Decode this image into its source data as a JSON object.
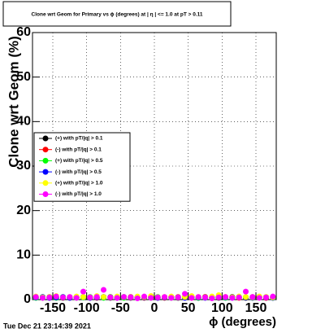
{
  "chart_data": {
    "type": "scatter",
    "title": "Clone wrt Geom for Primary vs ϕ (degrees) at | η | <= 1.0 at pT > 0.11",
    "x_label": "ϕ (degrees)",
    "y_label": "Clone wrt Geom (%)",
    "timestamp": "Tue Dec 21 23:14:39 2021",
    "xlim": [
      -180,
      180
    ],
    "ylim": [
      0,
      60
    ],
    "xticks": [
      -150,
      -100,
      -50,
      0,
      50,
      100,
      150
    ],
    "yticks": [
      0,
      10,
      20,
      30,
      40,
      50,
      60
    ],
    "grid": true,
    "legend": "left",
    "x": [
      -175,
      -165,
      -155,
      -145,
      -135,
      -125,
      -115,
      -105,
      -95,
      -85,
      -75,
      -65,
      -55,
      -45,
      -35,
      -25,
      -15,
      -5,
      5,
      15,
      25,
      35,
      45,
      55,
      65,
      75,
      85,
      95,
      105,
      115,
      125,
      135,
      145,
      155,
      165,
      175
    ],
    "series": [
      {
        "name": "(+) with pT/|q| > 0.1",
        "color": "#000000",
        "values": [
          0.5,
          0.4,
          0.6,
          0.5,
          0.4,
          0.5,
          0.6,
          0.5,
          0.4,
          0.5,
          0.6,
          0.4,
          0.5,
          0.6,
          0.4,
          0.5,
          0.6,
          0.5,
          0.4,
          0.5,
          0.6,
          0.4,
          0.5,
          0.5,
          0.4,
          0.6,
          0.5,
          0.4,
          0.5,
          0.6,
          0.5,
          0.4,
          0.5,
          0.6,
          0.4,
          0.5
        ]
      },
      {
        "name": "(-) with pT/|q| > 0.1",
        "color": "#ff0000",
        "values": [
          0.6,
          0.5,
          0.4,
          0.6,
          0.5,
          0.4,
          0.5,
          0.6,
          0.5,
          0.4,
          0.5,
          0.6,
          0.4,
          0.5,
          0.6,
          0.5,
          0.4,
          0.6,
          0.5,
          0.4,
          0.5,
          0.6,
          0.5,
          0.4,
          0.5,
          0.6,
          0.4,
          0.5,
          0.6,
          0.5,
          0.4,
          0.5,
          0.6,
          0.5,
          0.4,
          0.6
        ]
      },
      {
        "name": "(+) with pT/|q| > 0.5",
        "color": "#00ff00",
        "values": [
          0.4,
          0.6,
          0.5,
          0.4,
          0.6,
          0.5,
          0.4,
          0.5,
          0.6,
          0.5,
          0.4,
          0.6,
          0.5,
          0.4,
          0.5,
          0.6,
          0.5,
          0.4,
          0.6,
          0.5,
          0.4,
          0.5,
          0.6,
          0.5,
          0.4,
          0.5,
          0.6,
          0.5,
          0.4,
          0.5,
          0.6,
          0.5,
          0.4,
          0.5,
          0.6,
          0.4
        ]
      },
      {
        "name": "(-) with pT/|q| > 0.5",
        "color": "#0000ff",
        "values": [
          0.5,
          0.6,
          0.4,
          0.5,
          0.6,
          0.4,
          0.5,
          0.6,
          0.4,
          0.5,
          0.6,
          0.5,
          0.4,
          0.6,
          0.5,
          0.4,
          0.5,
          0.6,
          0.4,
          0.5,
          0.6,
          0.5,
          0.4,
          0.6,
          0.5,
          0.4,
          0.5,
          0.6,
          0.5,
          0.4,
          0.6,
          0.5,
          0.4,
          0.6,
          0.5,
          0.4
        ]
      },
      {
        "name": "(+) with pT/|q| > 1.0",
        "color": "#ffff00",
        "values": [
          0.7,
          0.5,
          0.6,
          0.8,
          0.5,
          0.6,
          0.7,
          0.6,
          0.5,
          0.8,
          0.6,
          0.5,
          0.7,
          0.6,
          0.5,
          0.7,
          0.6,
          0.8,
          0.5,
          0.6,
          0.7,
          0.5,
          0.6,
          0.8,
          0.6,
          0.5,
          0.7,
          1.0,
          0.6,
          0.5,
          0.7,
          0.6,
          0.5,
          0.7,
          0.6,
          0.5
        ]
      },
      {
        "name": "(-) with pT/|q| > 1.0",
        "color": "#ff00ff",
        "values": [
          0.6,
          0.4,
          0.5,
          0.7,
          0.5,
          0.6,
          0.4,
          1.8,
          0.5,
          0.6,
          2.2,
          0.5,
          0.4,
          0.6,
          0.5,
          0.3,
          0.7,
          0.4,
          0.5,
          0.6,
          0.4,
          0.5,
          1.3,
          0.4,
          0.6,
          0.5,
          0.3,
          0.5,
          0.6,
          0.4,
          0.5,
          1.8,
          0.6,
          0.4,
          0.5,
          0.7
        ]
      }
    ]
  }
}
